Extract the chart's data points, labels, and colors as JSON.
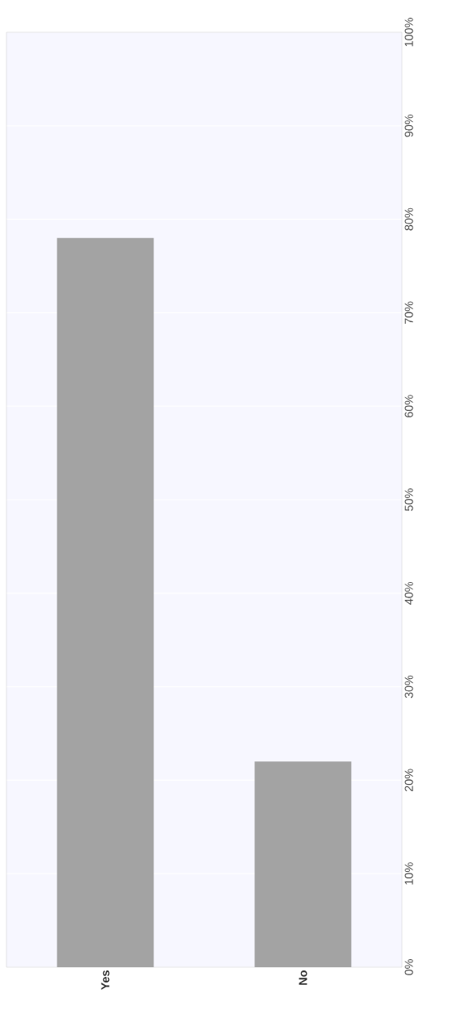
{
  "chart_data": {
    "type": "bar",
    "categories": [
      "Yes",
      "No"
    ],
    "values": [
      78,
      22
    ],
    "color": "#a3a3a3",
    "ylim": [
      0,
      100
    ],
    "yticks": [
      {
        "value": 0,
        "label": "0%"
      },
      {
        "value": 10,
        "label": "10%"
      },
      {
        "value": 20,
        "label": "20%"
      },
      {
        "value": 30,
        "label": "30%"
      },
      {
        "value": 40,
        "label": "40%"
      },
      {
        "value": 50,
        "label": "50%"
      },
      {
        "value": 60,
        "label": "60%"
      },
      {
        "value": 70,
        "label": "70%"
      },
      {
        "value": 80,
        "label": "80%"
      },
      {
        "value": 90,
        "label": "90%"
      },
      {
        "value": 100,
        "label": "100%"
      }
    ],
    "grid": "y"
  }
}
